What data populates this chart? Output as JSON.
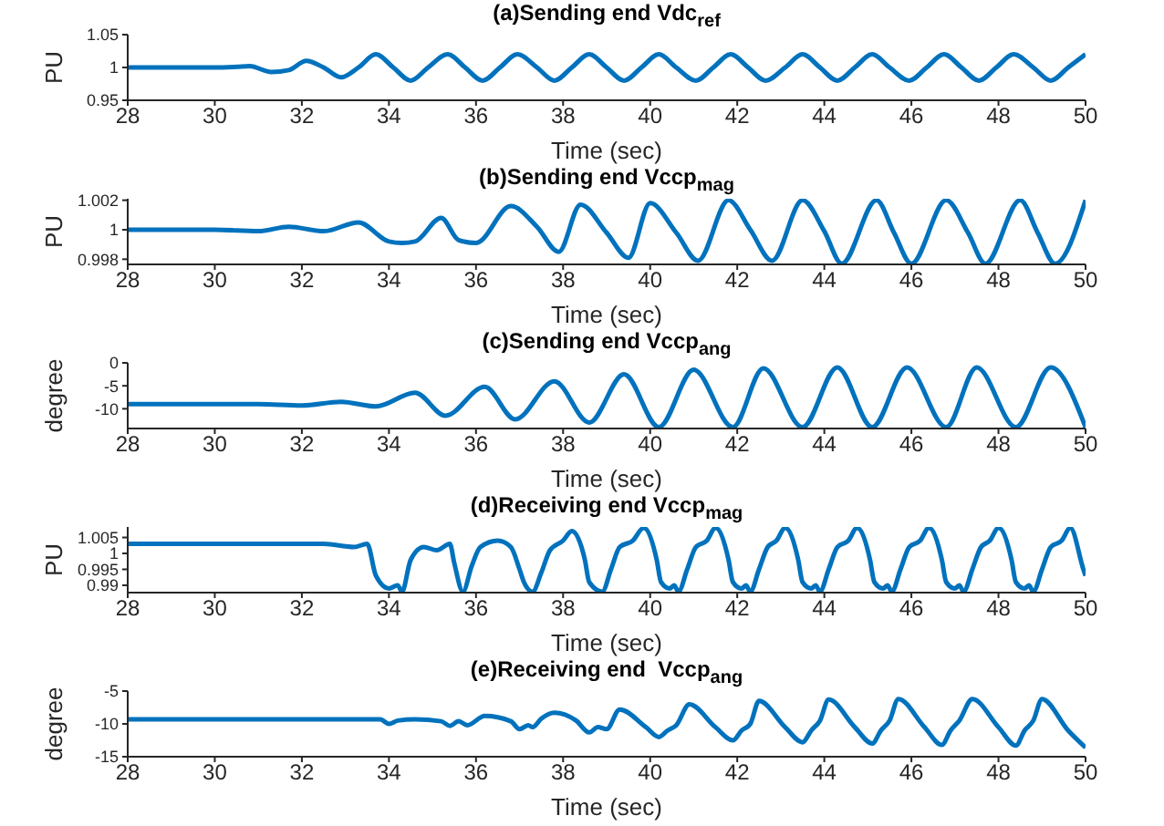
{
  "chart_data": [
    {
      "type": "line",
      "title": "(a)Sending end Vdc$_{ref}$",
      "xlabel": "Time (sec)",
      "ylabel": "PU",
      "color": "#0072bd",
      "xlim": [
        28,
        50
      ],
      "xticks": [
        28,
        30,
        32,
        34,
        36,
        38,
        40,
        42,
        44,
        46,
        48,
        50
      ],
      "ylim": [
        0.95,
        1.05
      ],
      "yticks": [
        0.95,
        1,
        1.05
      ],
      "x": [
        28,
        30,
        30.5,
        30.8,
        31.3,
        31.7,
        32.1,
        32.5,
        32.9,
        33.3,
        33.7,
        34.1,
        34.5,
        34.9,
        35.35,
        35.75,
        36.15,
        36.55,
        36.95,
        37.4,
        37.8,
        38.2,
        38.6,
        39.0,
        39.4,
        39.8,
        40.2,
        40.6,
        41.05,
        41.45,
        41.85,
        42.25,
        42.65,
        43.1,
        43.5,
        43.9,
        44.3,
        44.7,
        45.1,
        45.5,
        45.95,
        46.35,
        46.75,
        47.15,
        47.55,
        47.95,
        48.35,
        48.8,
        49.2,
        49.6,
        50
      ],
      "values": [
        1,
        1,
        1.001,
        1.002,
        0.993,
        0.996,
        1.01,
        1.0,
        0.985,
        1.0,
        1.02,
        1.0,
        0.98,
        1.0,
        1.02,
        1.0,
        0.98,
        1.0,
        1.02,
        1.0,
        0.98,
        1.0,
        1.02,
        1.0,
        0.98,
        1.0,
        1.02,
        1.0,
        0.98,
        1.0,
        1.02,
        1.0,
        0.98,
        1.0,
        1.02,
        1.0,
        0.98,
        1.0,
        1.02,
        1.0,
        0.98,
        1.0,
        1.02,
        1.0,
        0.98,
        1.0,
        1.02,
        1.0,
        0.98,
        1.0,
        1.02
      ]
    },
    {
      "type": "line",
      "title": "(b)Sending end Vccp$_{mag}$",
      "xlabel": "Time (sec)",
      "ylabel": "PU",
      "color": "#0072bd",
      "xlim": [
        28,
        50
      ],
      "xticks": [
        28,
        30,
        32,
        34,
        36,
        38,
        40,
        42,
        44,
        46,
        48,
        50
      ],
      "ylim": [
        0.99765,
        1.0021
      ],
      "yticks": [
        0.998,
        1,
        1.002
      ],
      "x": [
        28,
        30,
        31,
        31.7,
        32.5,
        33.3,
        34.0,
        34.3,
        34.6,
        35.2,
        35.6,
        36.0,
        36.8,
        37.4,
        37.9,
        38.4,
        39.0,
        39.5,
        40.0,
        40.6,
        41.1,
        41.8,
        42.3,
        42.8,
        43.5,
        44.0,
        44.4,
        45.2,
        45.6,
        46.0,
        46.8,
        47.3,
        47.7,
        48.5,
        48.9,
        49.3,
        50
      ],
      "values": [
        1,
        1,
        0.9999,
        1.0002,
        0.9999,
        1.0005,
        0.9992,
        0.9991,
        0.9992,
        1.0008,
        0.9993,
        0.9991,
        1.0016,
        1.0002,
        0.9985,
        1.0017,
        0.9998,
        0.9981,
        1.0018,
        0.9998,
        0.9979,
        1.002,
        1.0,
        0.9979,
        1.002,
        0.9999,
        0.9977,
        1.002,
        0.9998,
        0.9977,
        1.002,
        0.9998,
        0.9977,
        1.002,
        0.9998,
        0.9977,
        1.002
      ]
    },
    {
      "type": "line",
      "title": "(c)Sending end Vccp$_{ang}$",
      "xlabel": "Time (sec)",
      "ylabel": "degree",
      "color": "#0072bd",
      "xlim": [
        28,
        50
      ],
      "xticks": [
        28,
        30,
        32,
        34,
        36,
        38,
        40,
        42,
        44,
        46,
        48,
        50
      ],
      "ylim": [
        -14.3,
        0
      ],
      "yticks": [
        -10,
        -5,
        0
      ],
      "x": [
        28,
        31,
        32.0,
        32.9,
        33.7,
        34.6,
        35.3,
        36.2,
        36.9,
        37.8,
        38.6,
        39.4,
        40.2,
        41.0,
        41.9,
        42.6,
        43.5,
        44.3,
        45.1,
        45.9,
        46.8,
        47.5,
        48.4,
        49.2,
        50
      ],
      "values": [
        -9,
        -9,
        -9.3,
        -8.5,
        -9.5,
        -6.5,
        -11.5,
        -5.2,
        -12.3,
        -4,
        -13,
        -2.5,
        -14,
        -1.5,
        -14,
        -1.2,
        -14,
        -1,
        -14,
        -1,
        -14,
        -1,
        -14,
        -1,
        -14
      ]
    },
    {
      "type": "line",
      "title": "(d)Receiving end Vccp$_{mag}$",
      "xlabel": "Time (sec)",
      "ylabel": "PU",
      "color": "#0072bd",
      "xlim": [
        28,
        50
      ],
      "xticks": [
        28,
        30,
        32,
        34,
        36,
        38,
        40,
        42,
        44,
        46,
        48,
        50
      ],
      "ylim": [
        0.9877,
        1.0083
      ],
      "yticks": [
        0.99,
        0.995,
        1,
        1.005
      ],
      "x": [
        28,
        32.5,
        33.2,
        33.5,
        33.7,
        34.0,
        34.2,
        34.3,
        34.5,
        34.8,
        35.1,
        35.4,
        35.5,
        35.7,
        35.9,
        36.1,
        36.5,
        36.8,
        37.0,
        37.1,
        37.3,
        37.5,
        37.7,
        38.0,
        38.2,
        38.5,
        38.6,
        38.9,
        39.1,
        39.3,
        39.6,
        39.85,
        40.15,
        40.25,
        40.45,
        40.55,
        40.65,
        40.85,
        41.05,
        41.3,
        41.5,
        41.8,
        41.9,
        42.1,
        42.2,
        42.3,
        42.5,
        42.7,
        42.9,
        43.1,
        43.4,
        43.5,
        43.7,
        43.8,
        43.9,
        44.1,
        44.3,
        44.55,
        44.75,
        45.05,
        45.15,
        45.35,
        45.45,
        45.55,
        45.75,
        45.95,
        46.2,
        46.4,
        46.7,
        46.8,
        47.0,
        47.1,
        47.2,
        47.4,
        47.6,
        47.8,
        48.0,
        48.3,
        48.4,
        48.6,
        48.7,
        48.8,
        49.0,
        49.2,
        49.45,
        49.65,
        49.95,
        50
      ],
      "values": [
        1.003,
        1.003,
        1.002,
        1.003,
        0.993,
        0.989,
        0.99,
        0.988,
        0.998,
        1.002,
        1.001,
        1.003,
        0.997,
        0.988,
        0.996,
        1.002,
        1.004,
        1.002,
        0.995,
        0.991,
        0.988,
        0.994,
        1.001,
        1.004,
        1.007,
        0.998,
        0.991,
        0.988,
        0.995,
        1.002,
        1.004,
        1.008,
        0.998,
        0.991,
        0.989,
        0.99,
        0.988,
        0.995,
        1.002,
        1.004,
        1.008,
        0.998,
        0.991,
        0.989,
        0.99,
        0.988,
        0.995,
        1.002,
        1.004,
        1.008,
        0.998,
        0.991,
        0.989,
        0.99,
        0.988,
        0.995,
        1.002,
        1.004,
        1.008,
        0.998,
        0.991,
        0.989,
        0.99,
        0.988,
        0.995,
        1.002,
        1.004,
        1.008,
        0.998,
        0.991,
        0.989,
        0.99,
        0.988,
        0.995,
        1.002,
        1.004,
        1.008,
        0.998,
        0.991,
        0.989,
        0.99,
        0.988,
        0.995,
        1.002,
        1.004,
        1.008,
        0.995,
        0.993
      ]
    },
    {
      "type": "line",
      "title": "(e)Receiving end  Vccp$_{ang}$",
      "xlabel": "Time (sec)",
      "ylabel": "degree",
      "color": "#0072bd",
      "xlim": [
        28,
        50
      ],
      "xticks": [
        28,
        30,
        32,
        34,
        36,
        38,
        40,
        42,
        44,
        46,
        48,
        50
      ],
      "ylim": [
        -15,
        -5
      ],
      "yticks": [
        -15,
        -10,
        -5
      ],
      "x": [
        28,
        33.8,
        34.0,
        34.2,
        34.6,
        35.2,
        35.4,
        35.6,
        35.8,
        36.2,
        36.8,
        37.0,
        37.2,
        37.3,
        37.5,
        37.8,
        38.3,
        38.6,
        38.8,
        39.0,
        39.3,
        39.9,
        40.2,
        40.4,
        40.6,
        40.9,
        41.5,
        41.9,
        42.1,
        42.3,
        42.5,
        43.1,
        43.5,
        43.7,
        43.9,
        44.1,
        44.7,
        45.1,
        45.3,
        45.5,
        45.7,
        46.3,
        46.7,
        46.9,
        47.1,
        47.4,
        48.0,
        48.4,
        48.6,
        48.8,
        49.0,
        49.6,
        50
      ],
      "values": [
        -9.3,
        -9.3,
        -10,
        -9.5,
        -9.3,
        -9.6,
        -10.3,
        -9.6,
        -10.2,
        -8.8,
        -9.6,
        -10.8,
        -10.2,
        -10.5,
        -9.2,
        -8.3,
        -9.5,
        -11.3,
        -10.5,
        -10.8,
        -7.8,
        -10.5,
        -12,
        -11,
        -10.2,
        -7,
        -10.5,
        -12.5,
        -11,
        -10,
        -6.5,
        -10.5,
        -12.8,
        -11,
        -9.5,
        -6.3,
        -10.5,
        -13,
        -11,
        -9.5,
        -6.2,
        -10.5,
        -13.2,
        -11,
        -9.5,
        -6.2,
        -10.5,
        -13.3,
        -11,
        -9.5,
        -6.2,
        -11,
        -13.6
      ]
    }
  ]
}
